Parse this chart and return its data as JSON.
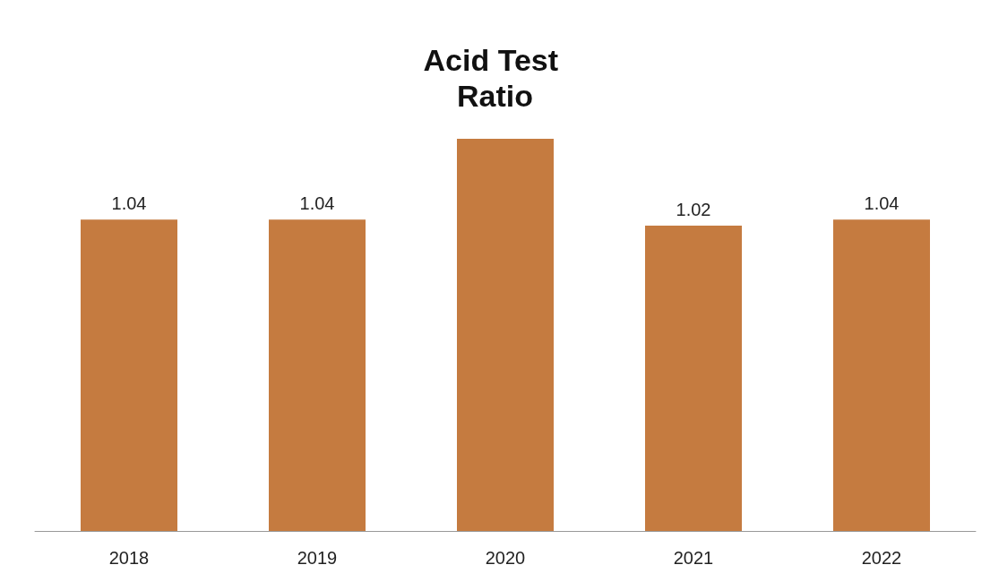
{
  "chart_data": {
    "type": "bar",
    "title": "Acid Test Ratio",
    "categories": [
      "2018",
      "2019",
      "2020",
      "2021",
      "2022"
    ],
    "values": [
      1.04,
      1.04,
      1.31,
      1.02,
      1.04
    ],
    "value_labels": [
      "1.04",
      "1.04",
      null,
      "1.02",
      "1.04"
    ],
    "color": "#c57b40"
  }
}
